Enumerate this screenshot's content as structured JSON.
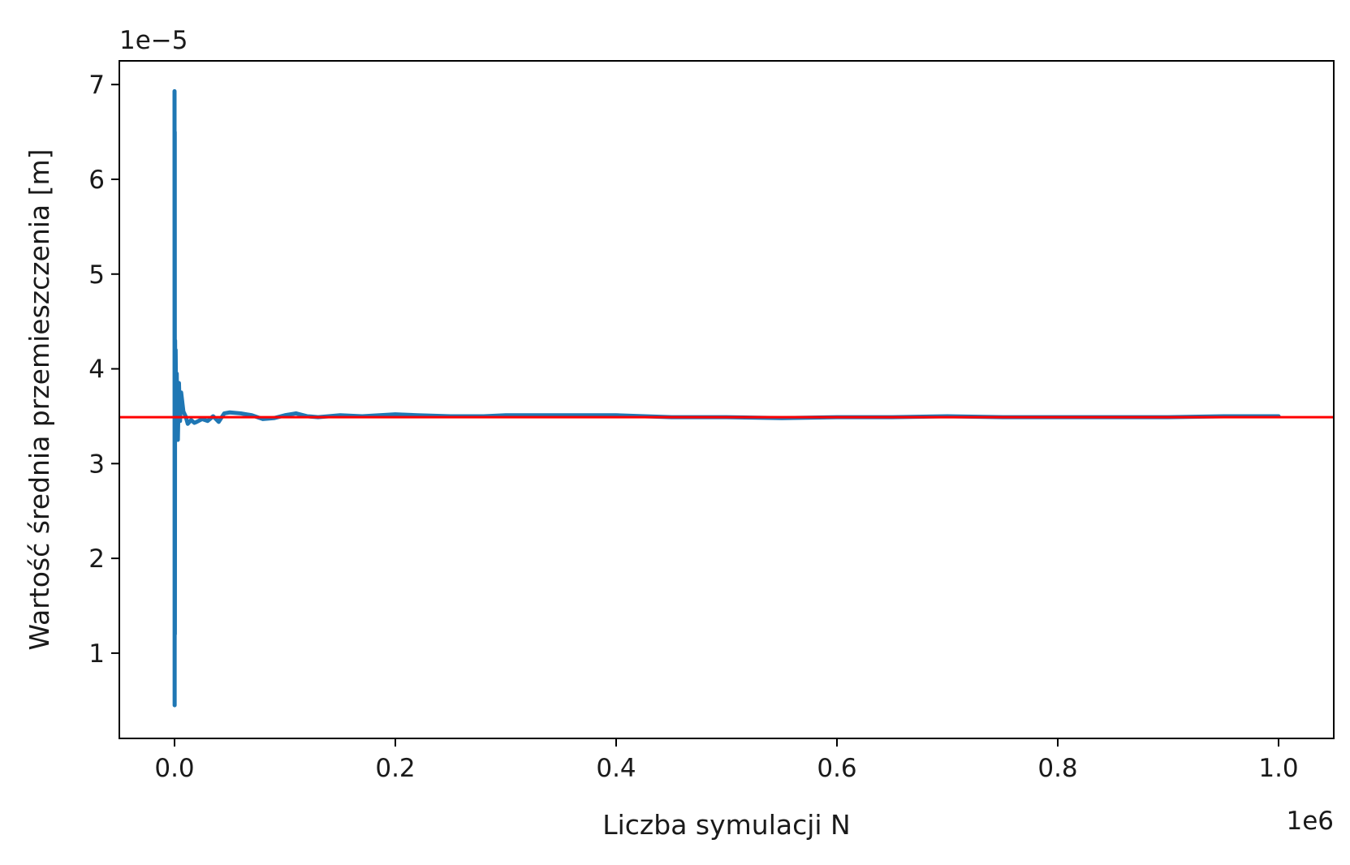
{
  "chart_data": {
    "type": "line",
    "title": "",
    "xlabel": "Liczba symulacji N",
    "ylabel": "Wartość średnia przemieszczenia [m]",
    "x_offset_label": "1e6",
    "y_offset_label": "1e−5",
    "xlim": [
      -0.05,
      1.05
    ],
    "ylim": [
      0.1,
      7.25
    ],
    "x_ticks": [
      0.0,
      0.2,
      0.4,
      0.6,
      0.8,
      1.0
    ],
    "x_tick_labels": [
      "0.0",
      "0.2",
      "0.4",
      "0.6",
      "0.8",
      "1.0"
    ],
    "y_ticks": [
      1,
      2,
      3,
      4,
      5,
      6,
      7
    ],
    "y_tick_labels": [
      "1",
      "2",
      "3",
      "4",
      "5",
      "6",
      "7"
    ],
    "grid": false,
    "series": [
      {
        "color": "#1f77b4",
        "x": [
          0.0,
          0.0001,
          0.0002,
          0.0003,
          0.0005,
          0.0008,
          0.001,
          0.0015,
          0.002,
          0.003,
          0.004,
          0.005,
          0.006,
          0.008,
          0.01,
          0.012,
          0.015,
          0.018,
          0.02,
          0.025,
          0.03,
          0.035,
          0.04,
          0.045,
          0.05,
          0.06,
          0.07,
          0.08,
          0.09,
          0.1,
          0.11,
          0.12,
          0.13,
          0.15,
          0.17,
          0.2,
          0.22,
          0.25,
          0.28,
          0.3,
          0.35,
          0.4,
          0.45,
          0.5,
          0.55,
          0.6,
          0.65,
          0.7,
          0.75,
          0.8,
          0.85,
          0.9,
          0.95,
          1.0
        ],
        "y": [
          6.93,
          0.45,
          6.5,
          1.2,
          4.3,
          3.3,
          4.2,
          3.5,
          3.95,
          3.25,
          3.85,
          3.45,
          3.75,
          3.55,
          3.5,
          3.42,
          3.46,
          3.43,
          3.44,
          3.47,
          3.45,
          3.5,
          3.44,
          3.53,
          3.54,
          3.53,
          3.51,
          3.47,
          3.48,
          3.51,
          3.53,
          3.5,
          3.49,
          3.51,
          3.5,
          3.52,
          3.51,
          3.5,
          3.5,
          3.51,
          3.51,
          3.51,
          3.49,
          3.49,
          3.48,
          3.49,
          3.49,
          3.5,
          3.49,
          3.49,
          3.49,
          3.49,
          3.5,
          3.5
        ]
      }
    ],
    "reference_line": {
      "y": 3.49,
      "color": "#ff0000"
    }
  }
}
